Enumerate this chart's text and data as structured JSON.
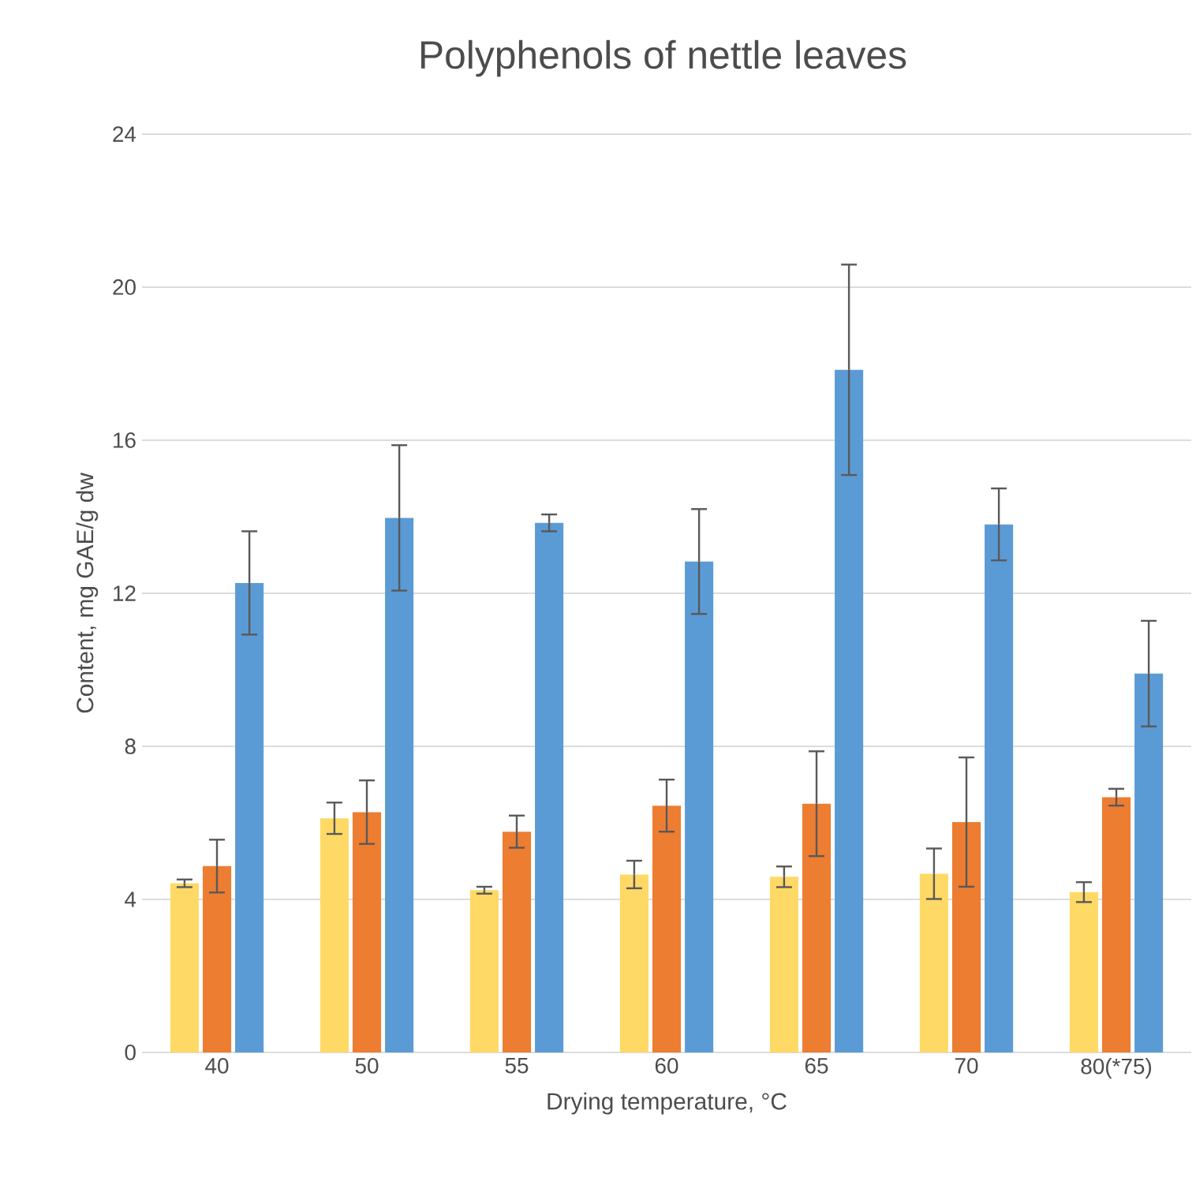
{
  "chart_data": {
    "type": "bar",
    "title": "Polyphenols of nettle leaves",
    "xlabel": "Drying temperature, °C",
    "ylabel": "Content, mg GAE/g dw",
    "categories": [
      "40",
      "50",
      "55",
      "60",
      "65",
      "70",
      "80(*75)"
    ],
    "series": [
      {
        "color": "#ffd966",
        "values": [
          4.42,
          6.12,
          4.24,
          4.65,
          4.59,
          4.67,
          4.19
        ],
        "errors": [
          0.1,
          0.41,
          0.09,
          0.36,
          0.27,
          0.66,
          0.26
        ]
      },
      {
        "color": "#ed7d31",
        "values": [
          4.87,
          6.28,
          5.77,
          6.45,
          6.5,
          6.02,
          6.67
        ],
        "errors": [
          0.69,
          0.83,
          0.42,
          0.68,
          1.37,
          1.69,
          0.22
        ]
      },
      {
        "color": "#5b9bd5",
        "values": [
          12.27,
          13.97,
          13.84,
          12.83,
          17.84,
          13.8,
          9.9
        ],
        "errors": [
          1.35,
          1.9,
          0.22,
          1.37,
          2.75,
          0.94,
          1.38
        ]
      }
    ],
    "ylim": [
      0,
      24
    ],
    "yticks": [
      0,
      4,
      8,
      12,
      16,
      20,
      24
    ],
    "grid": "y"
  }
}
